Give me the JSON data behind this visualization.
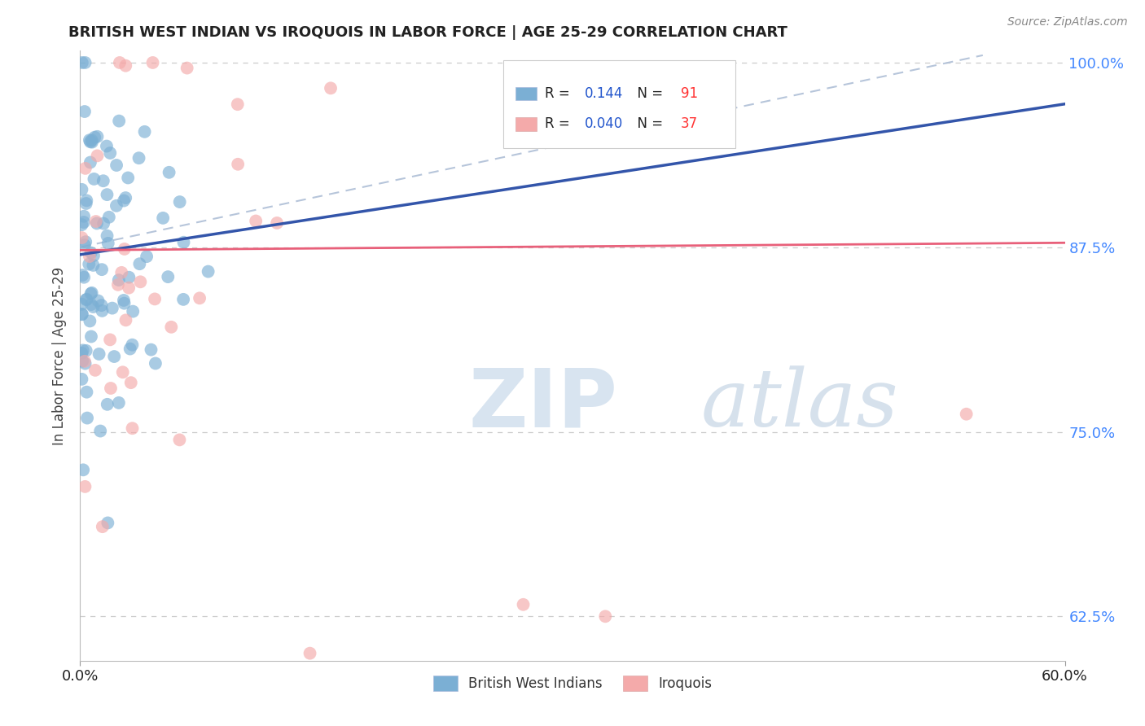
{
  "title": "BRITISH WEST INDIAN VS IROQUOIS IN LABOR FORCE | AGE 25-29 CORRELATION CHART",
  "source_text": "Source: ZipAtlas.com",
  "ylabel": "In Labor Force | Age 25-29",
  "xlim": [
    0.0,
    0.6
  ],
  "ylim": [
    0.595,
    1.008
  ],
  "ytick_labels": [
    "100.0%",
    "87.5%",
    "75.0%",
    "62.5%"
  ],
  "ytick_positions": [
    1.0,
    0.875,
    0.75,
    0.625
  ],
  "legend_label1": "British West Indians",
  "legend_label2": "Iroquois",
  "R1": "0.144",
  "N1": "91",
  "R2": "0.040",
  "N2": "37",
  "color1": "#7BAFD4",
  "color2": "#F4AAAA",
  "trend1_color": "#3355AA",
  "trend2_color": "#E8607A",
  "ref_line_color": "#AABBD4",
  "background_color": "#FFFFFF",
  "grid_color": "#CCCCCC",
  "title_color": "#222222",
  "ylabel_color": "#444444",
  "ytick_color": "#4488FF",
  "xtick_color": "#222222",
  "source_color": "#888888",
  "legend_box_color": "#DDDDDD"
}
